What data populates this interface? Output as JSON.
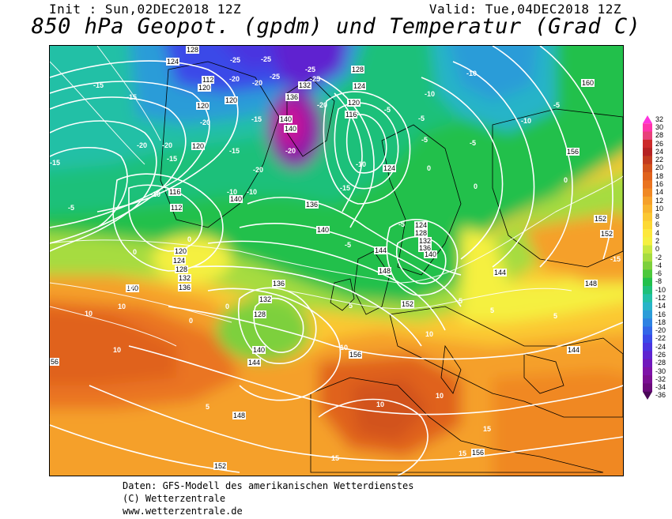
{
  "header": {
    "init": "Init : Sun,02DEC2018 12Z",
    "valid": "Valid: Tue,04DEC2018 12Z",
    "title": "850 hPa Geopot. (gpdm) und Temperatur (Grad C)"
  },
  "legend": {
    "values": [
      "32",
      "30",
      "28",
      "26",
      "24",
      "22",
      "20",
      "18",
      "16",
      "14",
      "12",
      "10",
      "8",
      "6",
      "4",
      "2",
      "0",
      "-2",
      "-4",
      "-6",
      "-8",
      "-10",
      "-12",
      "-14",
      "-16",
      "-18",
      "-20",
      "-22",
      "-24",
      "-26",
      "-28",
      "-30",
      "-32",
      "-34",
      "-36"
    ],
    "colors": [
      "#ff33dd",
      "#ff33aa",
      "#e8407a",
      "#cc2a2a",
      "#b52222",
      "#c23a1e",
      "#d2521c",
      "#e0621c",
      "#ea7420",
      "#f08824",
      "#f5a02a",
      "#f8b42e",
      "#fbc832",
      "#fdd934",
      "#fde83c",
      "#f5f040",
      "#c8e840",
      "#a6dc40",
      "#7dd03c",
      "#4cc83c",
      "#22c04c",
      "#1ec07a",
      "#22c0a6",
      "#28b4c8",
      "#2c9cd8",
      "#2e82e2",
      "#3366e8",
      "#3a4ae8",
      "#4a34e0",
      "#5e24d0",
      "#7018bc",
      "#7e12a8",
      "#7a0e92",
      "#6a0a7a",
      "#4a0858"
    ]
  },
  "map": {
    "geopotential_labels": [
      "128",
      "124",
      "120",
      "120",
      "120",
      "120",
      "116",
      "112",
      "112",
      "128",
      "124",
      "120",
      "116",
      "132",
      "136",
      "140",
      "140",
      "124",
      "124",
      "128",
      "132",
      "136",
      "140",
      "144",
      "148",
      "152",
      "160",
      "156",
      "152",
      "152",
      "148",
      "144",
      "144",
      "140",
      "136",
      "132",
      "128",
      "140",
      "144",
      "148",
      "152",
      "156",
      "120",
      "124",
      "128",
      "132",
      "136",
      "140",
      "140",
      "136",
      "156",
      "56"
    ],
    "temperature_labels": [
      "-25",
      "-25",
      "-25",
      "-25",
      "-20",
      "-20",
      "-25",
      "-20",
      "-15",
      "-15",
      "-15",
      "-10",
      "-15",
      "-20",
      "-20",
      "-15",
      "-10",
      "-5",
      "-20",
      "-15",
      "-10",
      "-20",
      "-20",
      "-15",
      "-10",
      "-5",
      "-5",
      "-5",
      "-5",
      "-10",
      "-10",
      "-10",
      "-5",
      "-5",
      "-5",
      "0",
      "0",
      "0",
      "0",
      "0",
      "0",
      "0",
      "5",
      "5",
      "5",
      "5",
      "5",
      "10",
      "10",
      "10",
      "10",
      "10",
      "10",
      "10",
      "10",
      "15",
      "15",
      "15",
      "-15"
    ]
  },
  "footer": {
    "line1": "Daten: GFS-Modell des amerikanischen Wetterdienstes",
    "line2": "(C) Wetterzentrale",
    "line3": "www.wetterzentrale.de"
  }
}
